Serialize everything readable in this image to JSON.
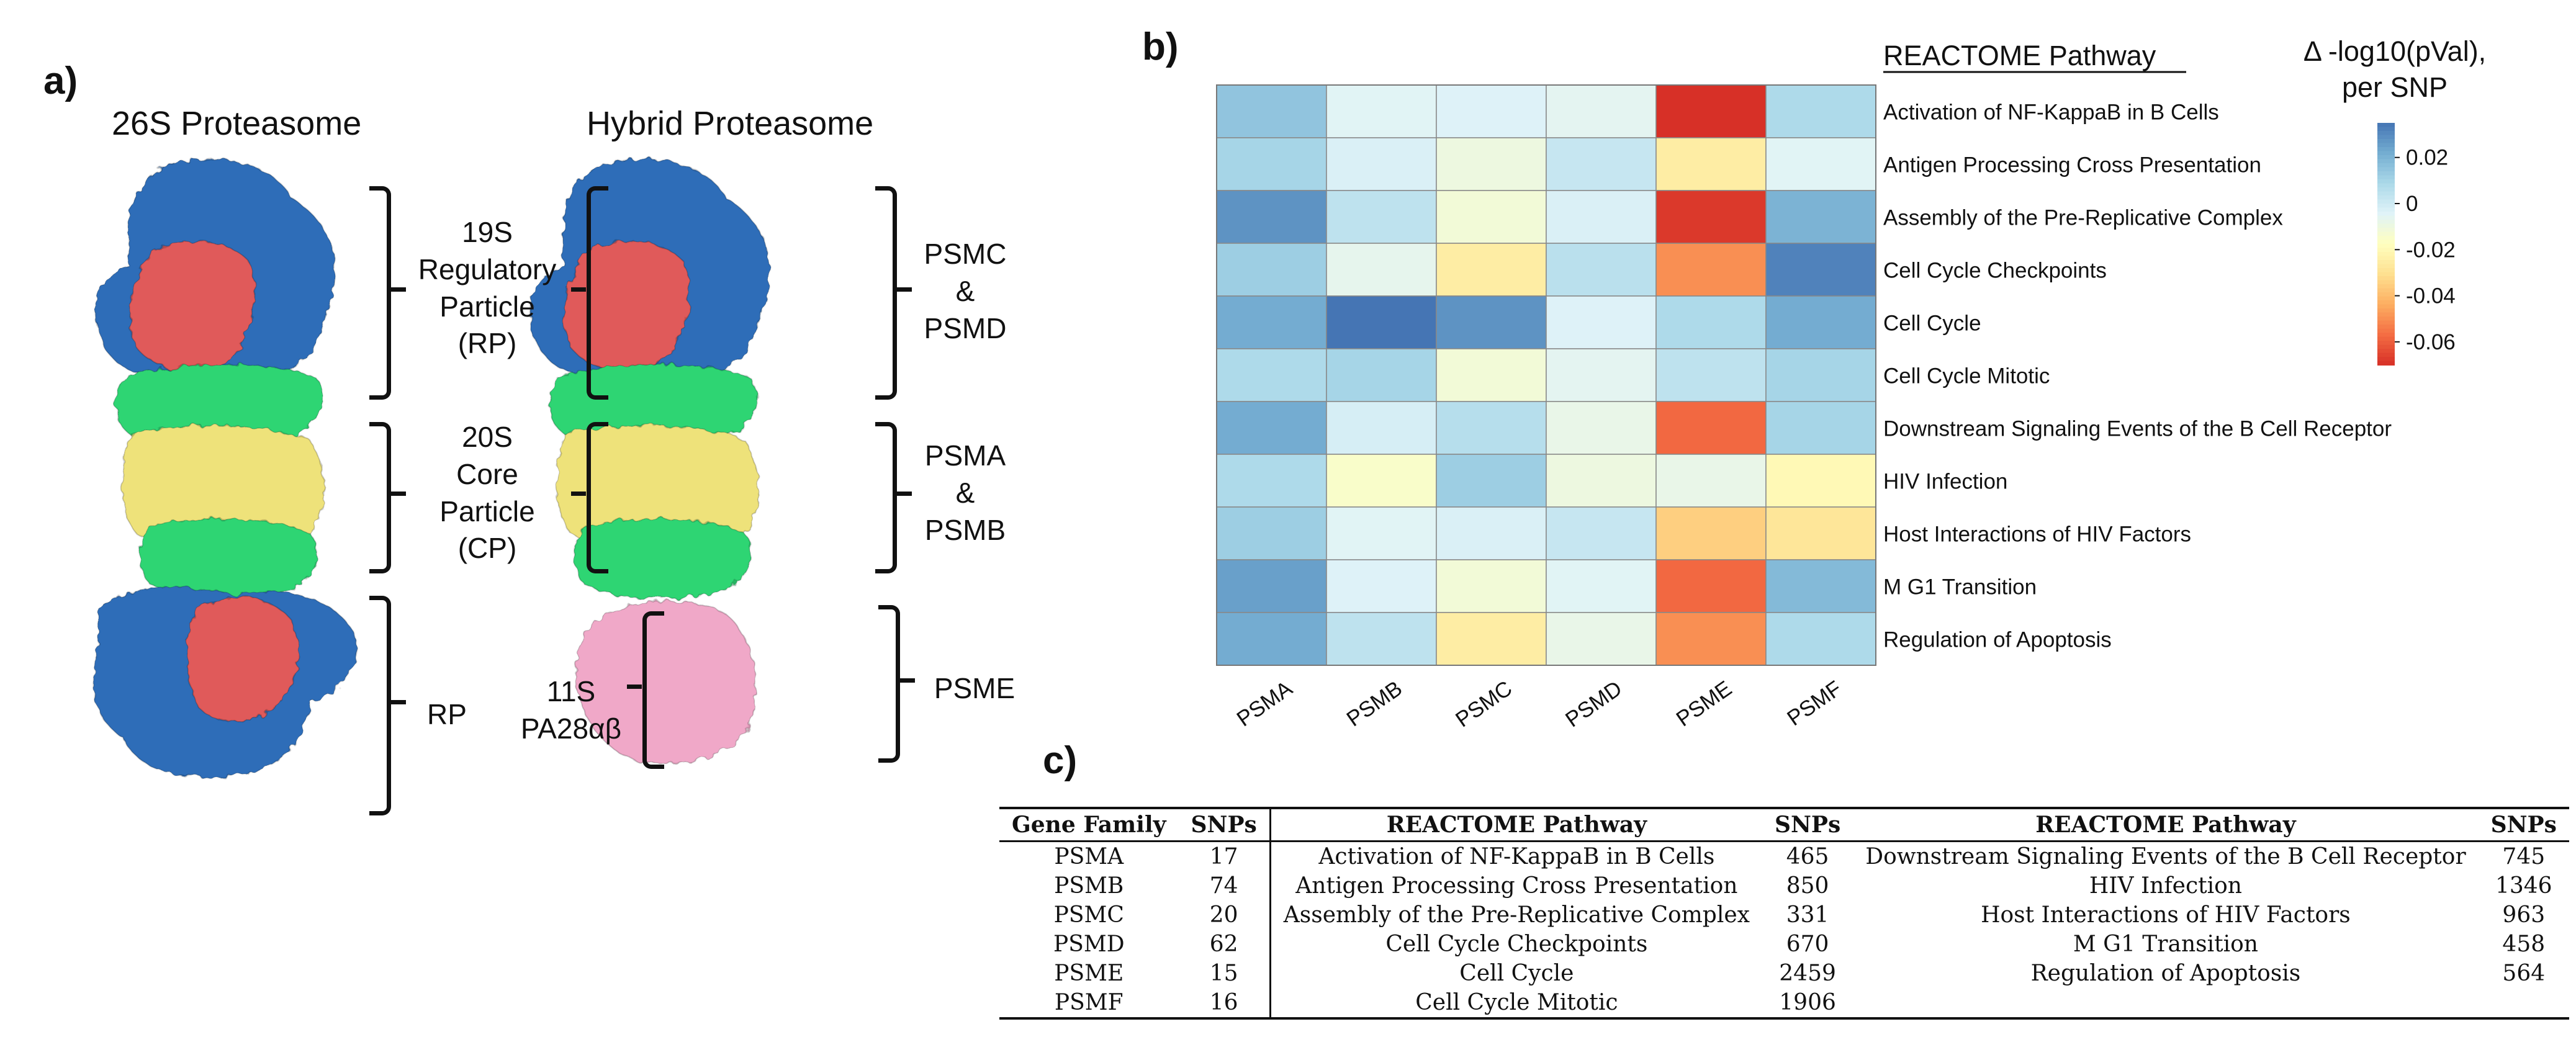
{
  "panel_a": {
    "letter": "a)",
    "title_left": "26S Proteasome",
    "title_right": "Hybrid Proteasome",
    "label_19s": "19S\nRegulatory\nParticle\n(RP)",
    "label_20s": "20S\nCore\nParticle\n(CP)",
    "label_rp": "RP",
    "label_11s": "11S\nPA28αβ",
    "label_psmc_psmd": "PSMC\n&\nPSMD",
    "label_psma_psmb": "PSMA\n&\nPSMB",
    "label_psme": "PSME",
    "colors": {
      "blue": "#2e6db8",
      "red": "#e05a5a",
      "green": "#2ed573",
      "yellow": "#eee27a",
      "pink": "#f0a8c8"
    }
  },
  "panel_b": {
    "letter": "b)"
  },
  "panel_c": {
    "letter": "c)",
    "headers": [
      "Gene Family",
      "SNPs",
      "REACTOME Pathway",
      "SNPs",
      "REACTOME Pathway",
      "SNPs"
    ],
    "rows": [
      [
        "PSMA",
        "17",
        "Activation of NF-KappaB in B Cells",
        "465",
        "Downstream Signaling Events of the B Cell Receptor",
        "745"
      ],
      [
        "PSMB",
        "74",
        "Antigen Processing Cross Presentation",
        "850",
        "HIV Infection",
        "1346"
      ],
      [
        "PSMC",
        "20",
        "Assembly of the Pre-Replicative Complex",
        "331",
        "Host Interactions of HIV Factors",
        "963"
      ],
      [
        "PSMD",
        "62",
        "Cell Cycle Checkpoints",
        "670",
        "M G1 Transition",
        "458"
      ],
      [
        "PSME",
        "15",
        "Cell Cycle",
        "2459",
        "Regulation of Apoptosis",
        "564"
      ],
      [
        "PSMF",
        "16",
        "Cell Cycle Mitotic",
        "1906",
        "",
        ""
      ]
    ]
  },
  "chart_data": {
    "type": "heatmap",
    "columns": [
      "PSMA",
      "PSMB",
      "PSMC",
      "PSMD",
      "PSME",
      "PSMF"
    ],
    "rows": [
      "Activation of NF-KappaB in B Cells",
      "Antigen Processing Cross Presentation",
      "Assembly of the Pre-Replicative Complex",
      "Cell Cycle Checkpoints",
      "Cell Cycle",
      "Cell Cycle Mitotic",
      "Downstream Signaling Events of the B Cell Receptor",
      "HIV Infection",
      "Host Interactions of HIV Factors",
      "M G1 Transition",
      "Regulation of Apoptosis"
    ],
    "values": [
      [
        0.015,
        -0.005,
        -0.004,
        -0.006,
        -0.07,
        0.008
      ],
      [
        0.01,
        -0.003,
        -0.01,
        0.002,
        -0.025,
        -0.005
      ],
      [
        0.028,
        0.004,
        -0.012,
        -0.003,
        -0.068,
        0.02
      ],
      [
        0.012,
        -0.007,
        -0.025,
        0.005,
        -0.05,
        0.032
      ],
      [
        0.022,
        0.036,
        0.028,
        -0.004,
        0.008,
        0.022
      ],
      [
        0.008,
        0.01,
        -0.012,
        -0.006,
        0.004,
        0.01
      ],
      [
        0.022,
        -0.002,
        0.006,
        -0.008,
        -0.058,
        0.01
      ],
      [
        0.008,
        -0.015,
        0.012,
        -0.01,
        -0.008,
        -0.02
      ],
      [
        0.012,
        -0.005,
        -0.003,
        0.002,
        -0.035,
        -0.028
      ],
      [
        0.025,
        -0.004,
        -0.012,
        -0.005,
        -0.058,
        0.018
      ],
      [
        0.022,
        0.004,
        -0.025,
        -0.008,
        -0.05,
        0.008
      ]
    ],
    "row_header": "REACTOME Pathway",
    "colorbar_title": "Δ -log10(pVal),\nper SNP",
    "colorbar_ticks": [
      0.02,
      0,
      -0.02,
      -0.04,
      -0.06
    ],
    "colorbar_tick_labels": [
      "0.02",
      "0",
      "-0.02",
      "-0.04",
      "-0.06"
    ],
    "vmin": -0.07,
    "vmax": 0.035,
    "colormap": [
      "#d73027",
      "#f46d43",
      "#fdae61",
      "#fee090",
      "#ffffbf",
      "#e0f3f8",
      "#abd9e9",
      "#74add1",
      "#4575b4"
    ]
  }
}
